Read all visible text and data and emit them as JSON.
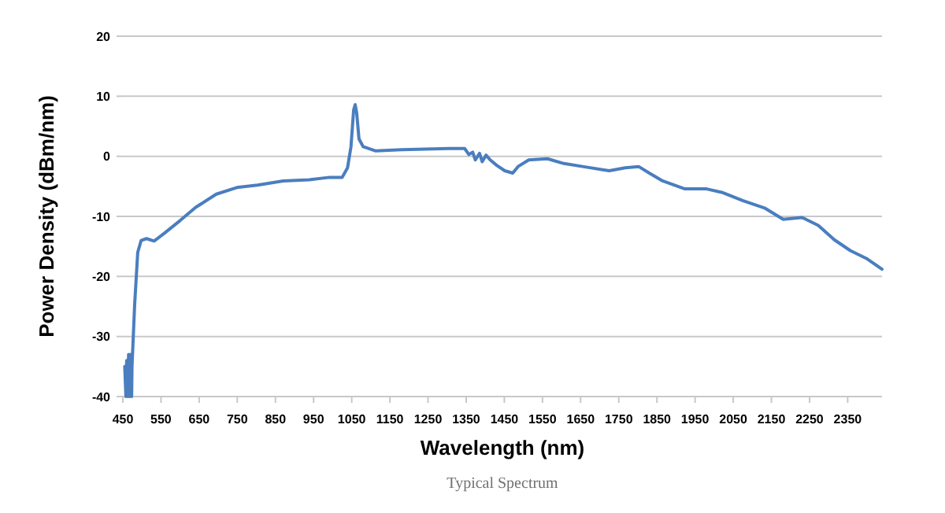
{
  "chart_data": {
    "type": "line",
    "xlabel": "Wavelength (nm)",
    "ylabel": "Power Density (dBm/nm)",
    "annotations": [
      "Typical Spectrum"
    ],
    "xlim": [
      450,
      2440
    ],
    "xticks": [
      450,
      550,
      650,
      750,
      850,
      950,
      1050,
      1150,
      1250,
      1350,
      1450,
      1550,
      1650,
      1750,
      1850,
      1950,
      2050,
      2150,
      2250,
      2350
    ],
    "ylim": [
      -40,
      20
    ],
    "yticks": [
      -40,
      -30,
      -20,
      -10,
      0,
      10,
      20
    ],
    "grid": "y",
    "marker": "none",
    "line_style": "solid",
    "series": [
      {
        "color": "#4a7ebf",
        "x": [
          455,
          458,
          460,
          463,
          465,
          468,
          470,
          473,
          474,
          481,
          489,
          498,
          512,
          532,
          559,
          600,
          641,
          695,
          749,
          803,
          870,
          938,
          992,
          1025,
          1039,
          1048,
          1055,
          1059,
          1063,
          1069,
          1080,
          1113,
          1181,
          1304,
          1346,
          1357,
          1367,
          1374,
          1385,
          1392,
          1402,
          1413,
          1430,
          1451,
          1472,
          1486,
          1514,
          1563,
          1606,
          1655,
          1725,
          1767,
          1802,
          1830,
          1865,
          1922,
          1978,
          2020,
          2076,
          2132,
          2181,
          2231,
          2273,
          2315,
          2357,
          2399,
          2440
        ],
        "values": [
          -35,
          -40,
          -34,
          -40,
          -33,
          -40,
          -33,
          -40,
          -35,
          -24.6,
          -16,
          -14,
          -13.7,
          -14.1,
          -12.8,
          -10.7,
          -8.5,
          -6.3,
          -5.2,
          -4.8,
          -4.1,
          -3.9,
          -3.5,
          -3.5,
          -1.9,
          1.6,
          7.7,
          8.6,
          7.2,
          2.9,
          1.6,
          0.9,
          1.1,
          1.3,
          1.3,
          0.3,
          0.7,
          -0.6,
          0.5,
          -0.9,
          0.2,
          -0.6,
          -1.5,
          -2.4,
          -2.8,
          -1.7,
          -0.6,
          -0.4,
          -1.2,
          -1.7,
          -2.4,
          -1.9,
          -1.7,
          -2.8,
          -4.1,
          -5.4,
          -5.4,
          -6.0,
          -7.4,
          -8.6,
          -10.5,
          -10.2,
          -11.5,
          -13.9,
          -15.7,
          -17.0,
          -18.8
        ]
      }
    ]
  }
}
